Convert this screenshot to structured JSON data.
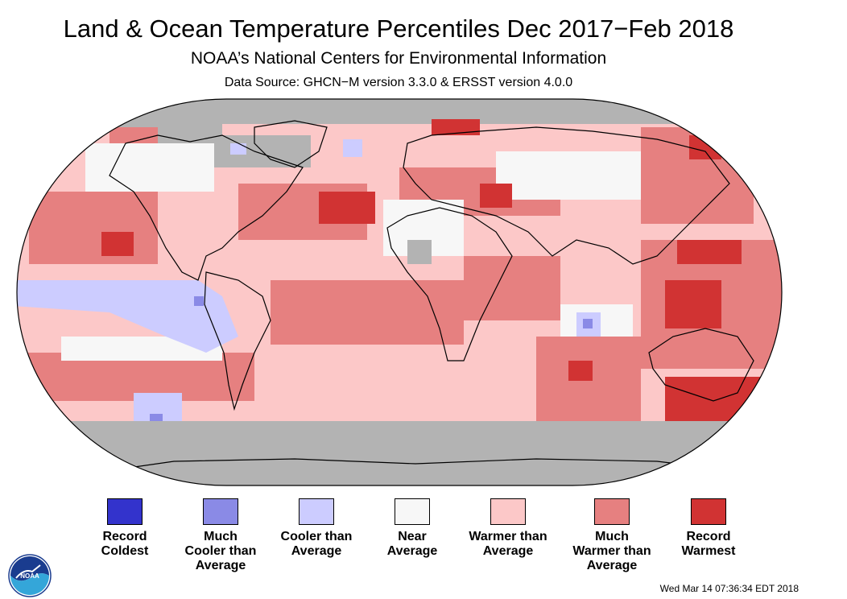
{
  "title": "Land & Ocean Temperature Percentiles Dec 2017−Feb 2018",
  "subtitle": "NOAA’s National Centers for Environmental Information",
  "source": "Data Source: GHCN−M version 3.3.0 & ERSST version 4.0.0",
  "timestamp": "Wed Mar 14 07:36:34 EDT 2018",
  "logo_text": "NOAA",
  "map": {
    "projection": "Robinson-style world map",
    "no_data_color": "#b3b3b3",
    "coastline_color": "#000000"
  },
  "legend": [
    {
      "label": "Record\nColdest",
      "color": "#3333cc"
    },
    {
      "label": "Much\nCooler than\nAverage",
      "color": "#8a8ae6"
    },
    {
      "label": "Cooler than\nAverage",
      "color": "#ccccff"
    },
    {
      "label": "Near\nAverage",
      "color": "#f7f7f7"
    },
    {
      "label": "Warmer than\nAverage",
      "color": "#fcc8c8"
    },
    {
      "label": "Much\nWarmer than\nAverage",
      "color": "#e68080"
    },
    {
      "label": "Record\nWarmest",
      "color": "#d13333"
    }
  ]
}
